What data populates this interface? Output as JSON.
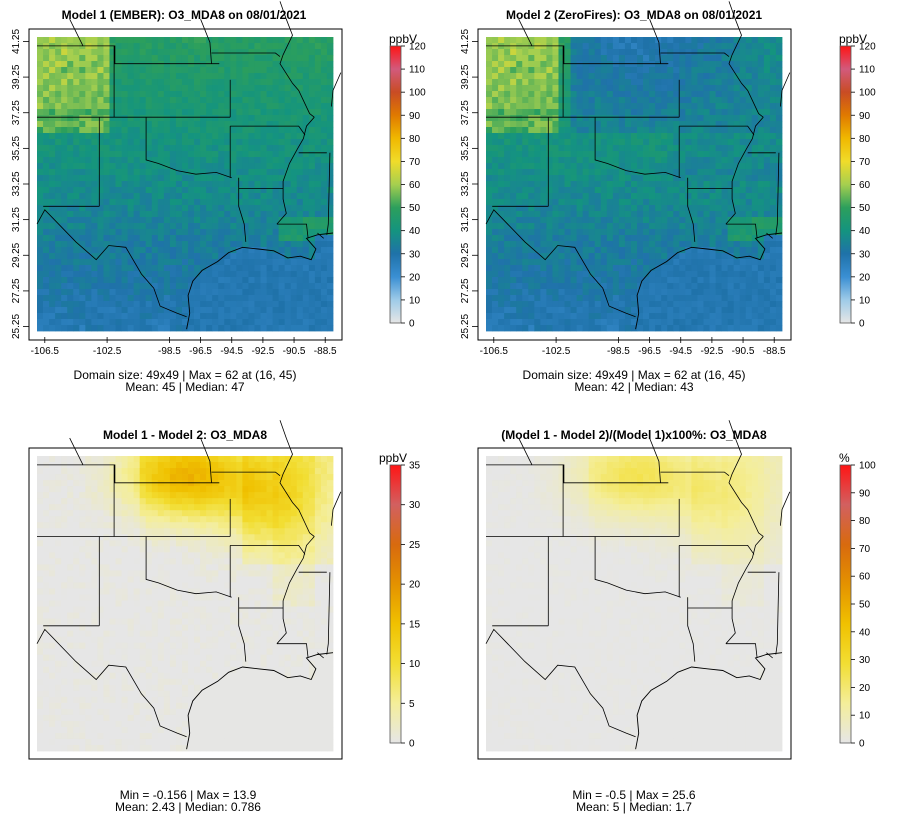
{
  "chart_data": [
    {
      "type": "heatmap",
      "title": "Model 1 (EMBER): O3_MDA8 on 08/01/2021",
      "x_ticks": [
        "-106.5",
        "-102.5",
        "-98.5",
        "-96.5",
        "-94.5",
        "-92.5",
        "-90.5",
        "-88.5"
      ],
      "x_tick_values": [
        -106.5,
        -102.5,
        -98.5,
        -96.5,
        -94.5,
        -92.5,
        -90.5,
        -88.5
      ],
      "y_ticks": [
        "25.25",
        "27.25",
        "29.25",
        "31.25",
        "33.25",
        "35.25",
        "37.25",
        "39.25",
        "41.25"
      ],
      "y_tick_values": [
        25.25,
        27.25,
        29.25,
        31.25,
        33.25,
        35.25,
        37.25,
        39.25,
        41.25
      ],
      "xlim": [
        -107,
        -88
      ],
      "ylim": [
        25,
        41.5
      ],
      "colorbar": {
        "unit": "ppbV",
        "min": 0,
        "max": 120,
        "ticks": [
          "0",
          "10",
          "20",
          "30",
          "40",
          "50",
          "60",
          "70",
          "80",
          "90",
          "100",
          "110",
          "120"
        ],
        "tick_values": [
          0,
          10,
          20,
          30,
          40,
          50,
          60,
          70,
          80,
          90,
          100,
          110,
          120
        ]
      },
      "grid": "49x49",
      "scenario": "ember",
      "stats_line1": "Domain size: 49x49 | Max = 62 at (16, 45)",
      "stats_line2": "Mean: 45 |  Median: 47",
      "max": 62,
      "mean": 45,
      "median": 47
    },
    {
      "type": "heatmap",
      "title": "Model 2 (ZeroFires): O3_MDA8 on 08/01/2021",
      "x_ticks": [
        "-106.5",
        "-102.5",
        "-98.5",
        "-96.5",
        "-94.5",
        "-92.5",
        "-90.5",
        "-88.5"
      ],
      "x_tick_values": [
        -106.5,
        -102.5,
        -98.5,
        -96.5,
        -94.5,
        -92.5,
        -90.5,
        -88.5
      ],
      "y_ticks": [
        "25.25",
        "27.25",
        "29.25",
        "31.25",
        "33.25",
        "35.25",
        "37.25",
        "39.25",
        "41.25"
      ],
      "y_tick_values": [
        25.25,
        27.25,
        29.25,
        31.25,
        33.25,
        35.25,
        37.25,
        39.25,
        41.25
      ],
      "xlim": [
        -107,
        -88
      ],
      "ylim": [
        25,
        41.5
      ],
      "colorbar": {
        "unit": "ppbV",
        "min": 0,
        "max": 120,
        "ticks": [
          "0",
          "10",
          "20",
          "30",
          "40",
          "50",
          "60",
          "70",
          "80",
          "90",
          "100",
          "110",
          "120"
        ],
        "tick_values": [
          0,
          10,
          20,
          30,
          40,
          50,
          60,
          70,
          80,
          90,
          100,
          110,
          120
        ]
      },
      "grid": "49x49",
      "scenario": "zerofires",
      "stats_line1": "Domain size: 49x49 | Max = 62 at (16, 45)",
      "stats_line2": "Mean: 42 |  Median: 43",
      "max": 62,
      "mean": 42,
      "median": 43
    },
    {
      "type": "heatmap",
      "title": "Model 1 - Model 2: O3_MDA8",
      "x_ticks": [],
      "y_ticks": [],
      "xlim": [
        -107,
        -88
      ],
      "ylim": [
        25,
        41.5
      ],
      "colorbar": {
        "unit": "ppbV",
        "min": 0,
        "max": 35,
        "ticks": [
          "0",
          "5",
          "10",
          "15",
          "20",
          "25",
          "30",
          "35"
        ],
        "tick_values": [
          0,
          5,
          10,
          15,
          20,
          25,
          30,
          35
        ]
      },
      "scenario": "diff",
      "stats_line1": "Min = -0.156 | Max = 13.9",
      "stats_line2": "Mean: 2.43 |  Median: 0.786",
      "min": -0.156,
      "max": 13.9,
      "mean": 2.43,
      "median": 0.786
    },
    {
      "type": "heatmap",
      "title": "(Model 1 - Model 2)/(Model 1)x100%: O3_MDA8",
      "x_ticks": [],
      "y_ticks": [],
      "xlim": [
        -107,
        -88
      ],
      "ylim": [
        25,
        41.5
      ],
      "colorbar": {
        "unit": "%",
        "min": 0,
        "max": 100,
        "ticks": [
          "0",
          "10",
          "20",
          "30",
          "40",
          "50",
          "60",
          "70",
          "80",
          "90",
          "100"
        ],
        "tick_values": [
          0,
          10,
          20,
          30,
          40,
          50,
          60,
          70,
          80,
          90,
          100
        ]
      },
      "scenario": "pct",
      "stats_line1": "Min = -0.5 | Max = 25.6",
      "stats_line2": "Mean: 5 |  Median: 1.7",
      "min": -0.5,
      "max": 25.6,
      "mean": 5,
      "median": 1.7
    }
  ],
  "colors": {
    "scale_stops": [
      "#e6e6e6",
      "#9ecbe8",
      "#3a8fd3",
      "#1f72a9",
      "#14947f",
      "#2c9f5c",
      "#a6cf4f",
      "#f0dc2a",
      "#f0b800",
      "#e07a00",
      "#c94c24",
      "#d25a7c",
      "#ff1515"
    ],
    "diff_stops": [
      "#e6e6e6",
      "#f4ee9a",
      "#f2de33",
      "#f0c100",
      "#e49200",
      "#d86a0e",
      "#d26060",
      "#ff1515"
    ]
  }
}
